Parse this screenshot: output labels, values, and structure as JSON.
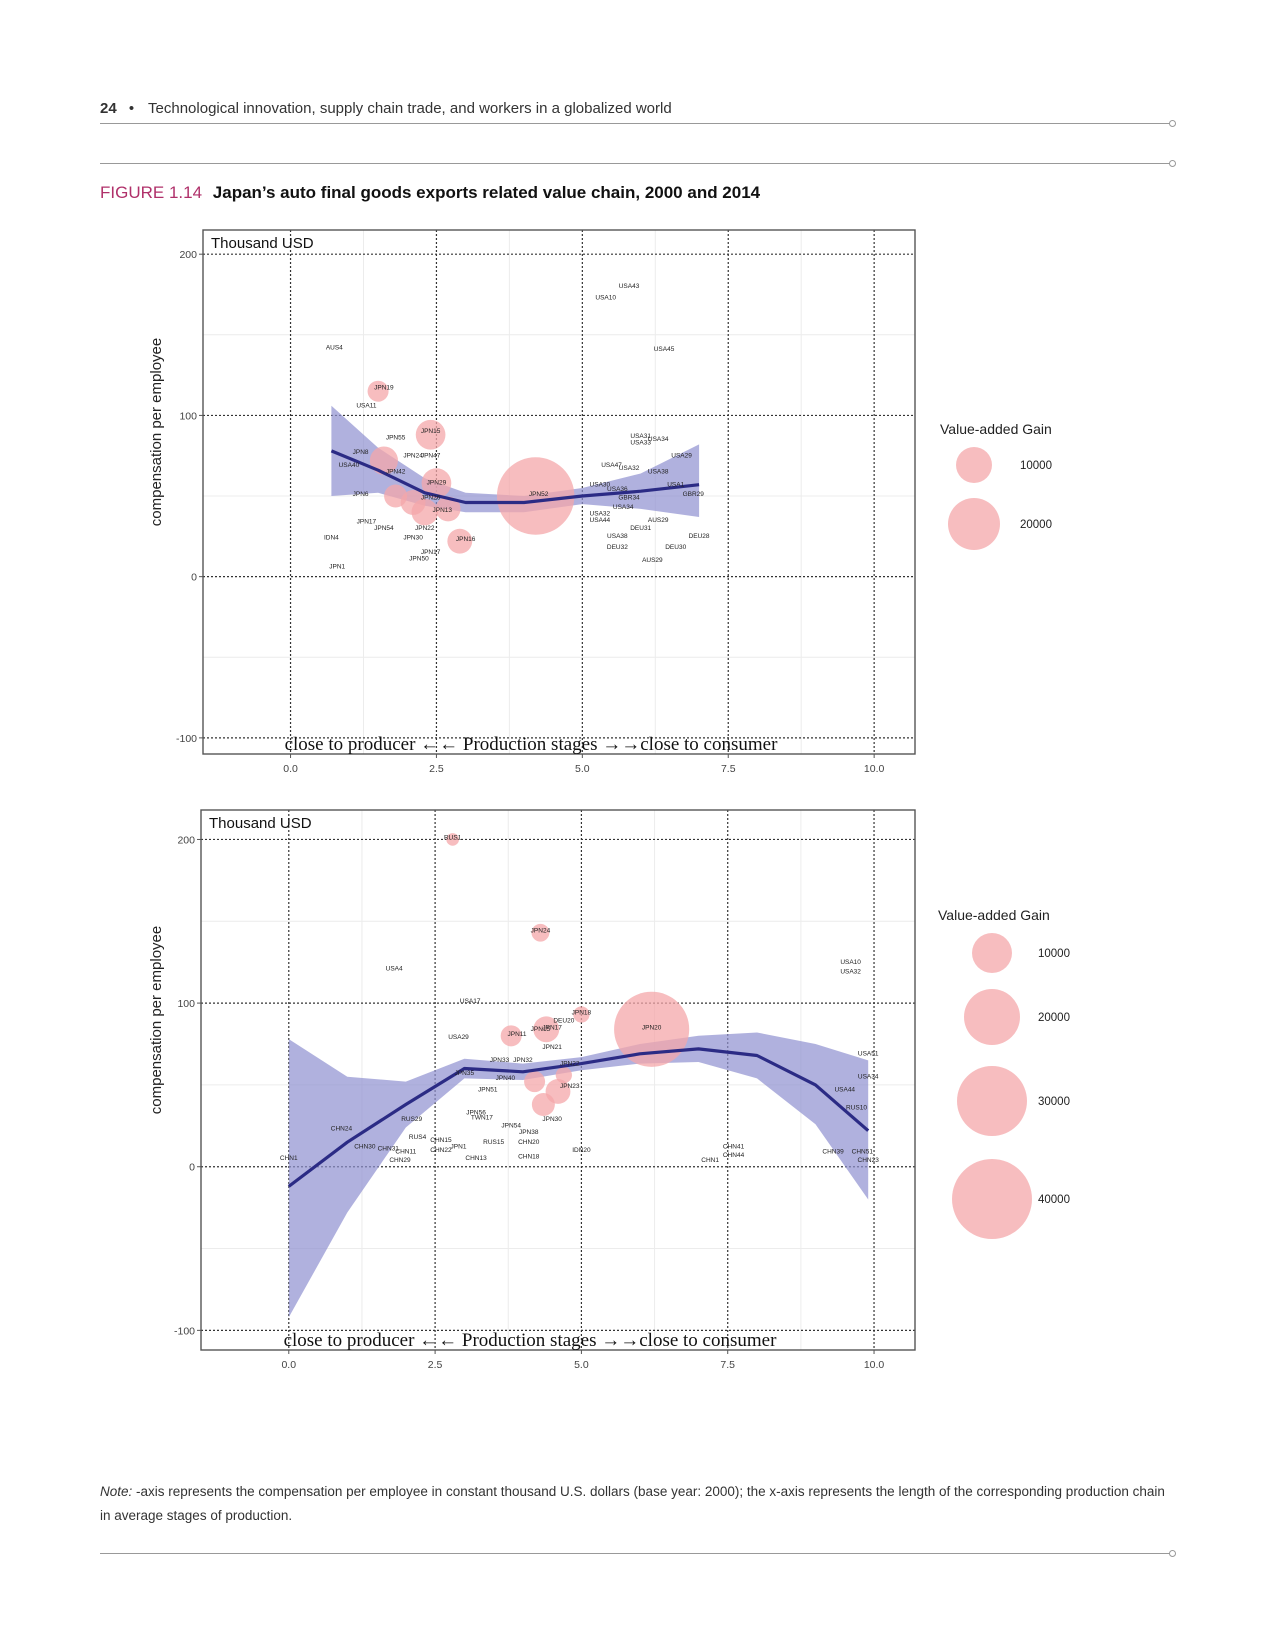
{
  "header": {
    "page_number": "24",
    "bullet": "•",
    "running_title": "Technological innovation, supply chain trade, and workers in a globalized world"
  },
  "figure": {
    "label": "FIGURE 1.14",
    "title": "Japan’s auto final goods exports related value chain, 2000 and 2014"
  },
  "colors": {
    "bubble": "#f4a7a9",
    "ribbon": "#8f90d0",
    "smooth_line": "#2b2b85",
    "accent": "#b0306a"
  },
  "chart_data": [
    {
      "type": "scatter",
      "title": "2000",
      "unit_label": "Thousand USD",
      "ylabel": "compensation per employee",
      "xlabel": "",
      "annotation": "close to producer ←←    Production stages →→close to consumer",
      "xlim": [
        -1.5,
        10.7
      ],
      "ylim": [
        -110,
        215
      ],
      "xticks": [
        "0.0",
        "2.5",
        "5.0",
        "7.5",
        "10.0"
      ],
      "yticks": [
        "200",
        "100",
        "0",
        "-100"
      ],
      "legend_title": "Value-added Gain",
      "legend_sizes": [
        "10000",
        "20000"
      ],
      "smooth": {
        "x": [
          0.7,
          1.5,
          2.3,
          3.0,
          4.0,
          5.0,
          6.0,
          7.0
        ],
        "y": [
          78,
          66,
          52,
          46,
          46,
          50,
          53,
          57
        ]
      },
      "ribbon_upper": [
        106,
        80,
        61,
        52,
        50,
        55,
        64,
        82
      ],
      "ribbon_lower": [
        50,
        52,
        44,
        40,
        40,
        45,
        42,
        37
      ],
      "bubbles": [
        {
          "x": 4.2,
          "y": 50,
          "size": 34000
        },
        {
          "x": 2.4,
          "y": 88,
          "size": 5000
        },
        {
          "x": 2.5,
          "y": 58,
          "size": 5000
        },
        {
          "x": 1.6,
          "y": 72,
          "size": 4500
        },
        {
          "x": 2.3,
          "y": 40,
          "size": 4000
        },
        {
          "x": 2.9,
          "y": 22,
          "size": 3500
        },
        {
          "x": 2.7,
          "y": 42,
          "size": 3500
        },
        {
          "x": 1.5,
          "y": 115,
          "size": 2500
        },
        {
          "x": 2.1,
          "y": 46,
          "size": 3500
        },
        {
          "x": 1.8,
          "y": 50,
          "size": 3000
        }
      ],
      "points": [
        {
          "label": "USA43",
          "x": 5.8,
          "y": 179
        },
        {
          "label": "USA10",
          "x": 5.4,
          "y": 172
        },
        {
          "label": "USA45",
          "x": 6.4,
          "y": 140
        },
        {
          "label": "AUS4",
          "x": 0.75,
          "y": 141
        },
        {
          "label": "JPN19",
          "x": 1.6,
          "y": 116
        },
        {
          "label": "USA11",
          "x": 1.3,
          "y": 105
        },
        {
          "label": "JPN15",
          "x": 2.4,
          "y": 89
        },
        {
          "label": "JPN55",
          "x": 1.8,
          "y": 85
        },
        {
          "label": "JPN8",
          "x": 1.2,
          "y": 76
        },
        {
          "label": "JPN47",
          "x": 2.4,
          "y": 74
        },
        {
          "label": "JPN24",
          "x": 2.1,
          "y": 74
        },
        {
          "label": "USA40",
          "x": 1.0,
          "y": 68
        },
        {
          "label": "JPN42",
          "x": 1.8,
          "y": 64
        },
        {
          "label": "JPN29",
          "x": 2.5,
          "y": 57
        },
        {
          "label": "JPN6",
          "x": 1.2,
          "y": 50
        },
        {
          "label": "JPN26",
          "x": 2.4,
          "y": 48
        },
        {
          "label": "JPN13",
          "x": 2.6,
          "y": 40
        },
        {
          "label": "JPN17",
          "x": 1.3,
          "y": 33
        },
        {
          "label": "JPN54",
          "x": 1.6,
          "y": 29
        },
        {
          "label": "JPN22",
          "x": 2.3,
          "y": 29
        },
        {
          "label": "IDN4",
          "x": 0.7,
          "y": 23
        },
        {
          "label": "JPN30",
          "x": 2.1,
          "y": 23
        },
        {
          "label": "JPN16",
          "x": 3.0,
          "y": 22
        },
        {
          "label": "JPN17",
          "x": 2.4,
          "y": 14
        },
        {
          "label": "JPN50",
          "x": 2.2,
          "y": 10
        },
        {
          "label": "JPN1",
          "x": 0.8,
          "y": 5
        },
        {
          "label": "JPN52",
          "x": 4.25,
          "y": 50
        },
        {
          "label": "USA31",
          "x": 6.0,
          "y": 86
        },
        {
          "label": "USA34",
          "x": 6.3,
          "y": 84
        },
        {
          "label": "USA33",
          "x": 6.0,
          "y": 82
        },
        {
          "label": "USA29",
          "x": 6.7,
          "y": 74
        },
        {
          "label": "USA47",
          "x": 5.5,
          "y": 68
        },
        {
          "label": "USA32",
          "x": 5.8,
          "y": 66
        },
        {
          "label": "USA38",
          "x": 6.3,
          "y": 64
        },
        {
          "label": "USA30",
          "x": 5.3,
          "y": 56
        },
        {
          "label": "USA36",
          "x": 5.6,
          "y": 53
        },
        {
          "label": "USA1",
          "x": 6.6,
          "y": 56
        },
        {
          "label": "GBR34",
          "x": 5.8,
          "y": 48
        },
        {
          "label": "GBR29",
          "x": 6.9,
          "y": 50
        },
        {
          "label": "USA34",
          "x": 5.7,
          "y": 42
        },
        {
          "label": "USA32",
          "x": 5.3,
          "y": 38
        },
        {
          "label": "USA44",
          "x": 5.3,
          "y": 34
        },
        {
          "label": "AUS29",
          "x": 6.3,
          "y": 34
        },
        {
          "label": "DEU31",
          "x": 6.0,
          "y": 29
        },
        {
          "label": "USA38",
          "x": 5.6,
          "y": 24
        },
        {
          "label": "DEU28",
          "x": 7.0,
          "y": 24
        },
        {
          "label": "DEU32",
          "x": 5.6,
          "y": 17
        },
        {
          "label": "DEU30",
          "x": 6.6,
          "y": 17
        },
        {
          "label": "AUS29",
          "x": 6.2,
          "y": 9
        }
      ]
    },
    {
      "type": "scatter",
      "title": "2014",
      "unit_label": "Thousand USD",
      "ylabel": "compensation per employee",
      "xlabel": "",
      "annotation": "close to producer ←←    Production stages →→close to consumer",
      "xlim": [
        -1.5,
        10.7
      ],
      "ylim": [
        -112,
        218
      ],
      "xticks": [
        "0.0",
        "2.5",
        "5.0",
        "7.5",
        "10.0"
      ],
      "yticks": [
        "200",
        "100",
        "0",
        "-100"
      ],
      "legend_title": "Value-added Gain",
      "legend_sizes": [
        "10000",
        "20000",
        "30000",
        "40000"
      ],
      "smooth": {
        "x": [
          0.0,
          1.0,
          2.0,
          3.0,
          4.0,
          5.0,
          6.0,
          7.0,
          8.0,
          9.0,
          9.9
        ],
        "y": [
          -12,
          15,
          38,
          60,
          58,
          63,
          69,
          72,
          68,
          50,
          22
        ]
      },
      "ribbon_upper": [
        78,
        55,
        52,
        66,
        63,
        67,
        75,
        80,
        82,
        75,
        65
      ],
      "ribbon_lower": [
        -92,
        -28,
        24,
        54,
        53,
        59,
        63,
        64,
        54,
        26,
        -20
      ],
      "bubbles": [
        {
          "x": 6.2,
          "y": 84,
          "size": 32000
        },
        {
          "x": 4.3,
          "y": 143,
          "size": 1800
        },
        {
          "x": 4.4,
          "y": 84,
          "size": 3800
        },
        {
          "x": 3.8,
          "y": 80,
          "size": 2500
        },
        {
          "x": 4.6,
          "y": 46,
          "size": 3500
        },
        {
          "x": 4.35,
          "y": 38,
          "size": 3000
        },
        {
          "x": 4.2,
          "y": 52,
          "size": 2500
        },
        {
          "x": 5.0,
          "y": 93,
          "size": 1500
        },
        {
          "x": 4.7,
          "y": 56,
          "size": 1500
        },
        {
          "x": 2.8,
          "y": 200,
          "size": 900
        }
      ],
      "points": [
        {
          "label": "RUS1",
          "x": 2.8,
          "y": 200
        },
        {
          "label": "JPN24",
          "x": 4.3,
          "y": 143
        },
        {
          "label": "USA10",
          "x": 9.6,
          "y": 124
        },
        {
          "label": "USA32",
          "x": 9.6,
          "y": 118
        },
        {
          "label": "USA4",
          "x": 1.8,
          "y": 120
        },
        {
          "label": "USA17",
          "x": 3.1,
          "y": 100
        },
        {
          "label": "JPN18",
          "x": 5.0,
          "y": 93
        },
        {
          "label": "DEU20",
          "x": 4.7,
          "y": 88
        },
        {
          "label": "JPN17",
          "x": 4.5,
          "y": 84
        },
        {
          "label": "JPN11",
          "x": 3.9,
          "y": 80
        },
        {
          "label": "JPN15",
          "x": 4.3,
          "y": 83
        },
        {
          "label": "JPN20",
          "x": 6.2,
          "y": 84
        },
        {
          "label": "USA29",
          "x": 2.9,
          "y": 78
        },
        {
          "label": "JPN21",
          "x": 4.5,
          "y": 72
        },
        {
          "label": "USA51",
          "x": 9.9,
          "y": 68
        },
        {
          "label": "JPN33",
          "x": 3.6,
          "y": 64
        },
        {
          "label": "JPN32",
          "x": 4.0,
          "y": 64
        },
        {
          "label": "JPN22",
          "x": 4.8,
          "y": 62
        },
        {
          "label": "JPN35",
          "x": 3.0,
          "y": 56
        },
        {
          "label": "JPN40",
          "x": 3.7,
          "y": 53
        },
        {
          "label": "USA34",
          "x": 9.9,
          "y": 54
        },
        {
          "label": "JPN23",
          "x": 4.8,
          "y": 48
        },
        {
          "label": "JPN51",
          "x": 3.4,
          "y": 46
        },
        {
          "label": "USA44",
          "x": 9.5,
          "y": 46
        },
        {
          "label": "RUS10",
          "x": 9.7,
          "y": 35
        },
        {
          "label": "JPN56",
          "x": 3.2,
          "y": 32
        },
        {
          "label": "TWN17",
          "x": 3.3,
          "y": 29
        },
        {
          "label": "JPN30",
          "x": 4.5,
          "y": 28
        },
        {
          "label": "RUS29",
          "x": 2.1,
          "y": 28
        },
        {
          "label": "JPN54",
          "x": 3.8,
          "y": 24
        },
        {
          "label": "JPN38",
          "x": 4.1,
          "y": 20
        },
        {
          "label": "CHN24",
          "x": 0.9,
          "y": 22
        },
        {
          "label": "RUS4",
          "x": 2.2,
          "y": 17
        },
        {
          "label": "CHN15",
          "x": 2.6,
          "y": 15
        },
        {
          "label": "RUS15",
          "x": 3.5,
          "y": 14
        },
        {
          "label": "CHN20",
          "x": 4.1,
          "y": 14
        },
        {
          "label": "CHN30",
          "x": 1.3,
          "y": 11
        },
        {
          "label": "CHN31",
          "x": 1.7,
          "y": 10
        },
        {
          "label": "CHN11",
          "x": 2.0,
          "y": 8
        },
        {
          "label": "CHN22",
          "x": 2.6,
          "y": 9
        },
        {
          "label": "JPN1",
          "x": 2.9,
          "y": 11
        },
        {
          "label": "IDN20",
          "x": 5.0,
          "y": 9
        },
        {
          "label": "CHN41",
          "x": 7.6,
          "y": 11
        },
        {
          "label": "CHN44",
          "x": 7.6,
          "y": 6
        },
        {
          "label": "CHN39",
          "x": 9.3,
          "y": 8
        },
        {
          "label": "CHN51",
          "x": 9.8,
          "y": 8
        },
        {
          "label": "CHN29",
          "x": 1.9,
          "y": 3
        },
        {
          "label": "CHN13",
          "x": 3.2,
          "y": 4
        },
        {
          "label": "CHN18",
          "x": 4.1,
          "y": 5
        },
        {
          "label": "CHN1",
          "x": 0.0,
          "y": 4
        },
        {
          "label": "CHN1",
          "x": 7.2,
          "y": 3
        },
        {
          "label": "CHN23",
          "x": 9.9,
          "y": 3
        }
      ]
    }
  ],
  "note": {
    "label": "Note:",
    "text": " -axis represents the compensation per employee in constant thousand U.S. dollars (base year: 2000); the x-axis represents the length of the corresponding production chain in average stages of production."
  }
}
